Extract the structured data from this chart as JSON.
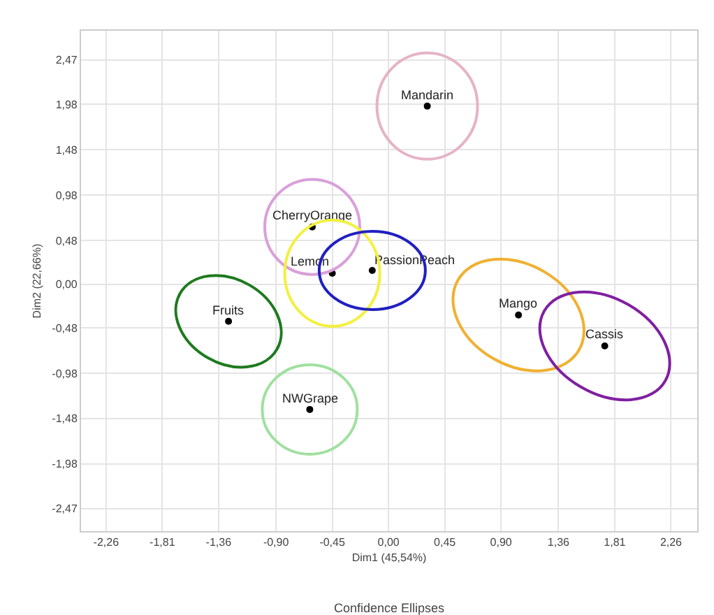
{
  "chart_data": {
    "type": "scatter",
    "xlabel": "Dim1 (45,54%)",
    "ylabel": "Dim2 (22,66%)",
    "annotations": [
      "Confidence Ellipses",
      {
        "text": "Mandarin",
        "x": 0.31,
        "y": 1.96
      },
      {
        "text": "CherryOrange",
        "x": -0.61,
        "y": 0.63
      },
      {
        "text": "Lemon",
        "x": -0.45,
        "y": 0.12
      },
      {
        "text": "PassionPeach",
        "x": -0.13,
        "y": 0.15
      },
      {
        "text": "Fruits",
        "x": -1.28,
        "y": -0.41
      },
      {
        "text": "NWGrape",
        "x": -0.63,
        "y": -1.38
      },
      {
        "text": "Mango",
        "x": 1.04,
        "y": -0.34
      },
      {
        "text": "Cassis",
        "x": 1.73,
        "y": -0.68
      }
    ],
    "xlim": [
      -2.46,
      2.47
    ],
    "ylim": [
      -2.72,
      2.79
    ],
    "xticks": [
      {
        "value": -2.26,
        "label": "-2,26"
      },
      {
        "value": -1.81,
        "label": "-1,81"
      },
      {
        "value": -1.36,
        "label": "-1,36"
      },
      {
        "value": -0.9,
        "label": "-0,90"
      },
      {
        "value": -0.45,
        "label": "-0,45"
      },
      {
        "value": 0,
        "label": "0,00"
      },
      {
        "value": 0.45,
        "label": "0,45"
      },
      {
        "value": 0.9,
        "label": "0,90"
      },
      {
        "value": 1.36,
        "label": "1,36"
      },
      {
        "value": 1.81,
        "label": "1,81"
      },
      {
        "value": 2.26,
        "label": "2,26"
      }
    ],
    "yticks": [
      {
        "value": -2.47,
        "label": "-2,47"
      },
      {
        "value": -1.98,
        "label": "-1,98"
      },
      {
        "value": -1.48,
        "label": "-1,48"
      },
      {
        "value": -0.98,
        "label": "-0,98"
      },
      {
        "value": -0.48,
        "label": "-0,48"
      },
      {
        "value": 0,
        "label": "0,00"
      },
      {
        "value": 0.48,
        "label": "0,48"
      },
      {
        "value": 0.98,
        "label": "0,98"
      },
      {
        "value": 1.48,
        "label": "1,48"
      },
      {
        "value": 1.98,
        "label": "1,98"
      },
      {
        "value": 2.47,
        "label": "2,47"
      }
    ],
    "grid": true,
    "marker": "circle",
    "series": [
      {
        "color": "#000000",
        "x": [
          0.31,
          -0.61,
          -0.45,
          -0.13,
          -1.28,
          -0.63,
          1.04,
          1.73
        ],
        "values": [
          1.96,
          0.63,
          0.12,
          0.15,
          -0.41,
          -1.38,
          -0.34,
          -0.68
        ]
      }
    ]
  }
}
